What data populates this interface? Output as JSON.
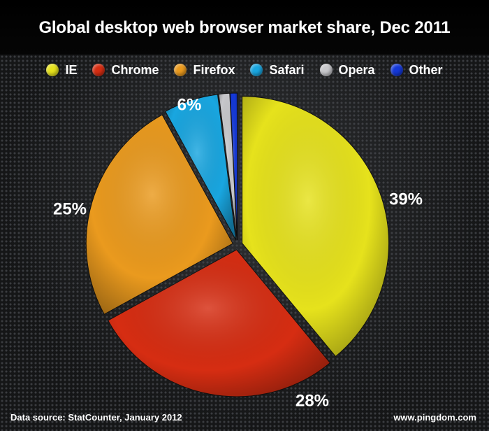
{
  "chart_data": {
    "type": "pie",
    "title": "Global desktop web browser market share, Dec 2011",
    "slices": [
      {
        "name": "IE",
        "value": 39,
        "label": "39%",
        "color": "#e6e21c"
      },
      {
        "name": "Chrome",
        "value": 28,
        "label": "28%",
        "color": "#d62d12"
      },
      {
        "name": "Firefox",
        "value": 25,
        "label": "25%",
        "color": "#ea9a1e"
      },
      {
        "name": "Safari",
        "value": 6,
        "label": "6%",
        "color": "#19a6e0"
      },
      {
        "name": "Opera",
        "value": 1.2,
        "label": "",
        "color": "#c8c8cc"
      },
      {
        "name": "Other",
        "value": 0.8,
        "label": "",
        "color": "#1438d8"
      }
    ],
    "legend": "top"
  },
  "footer": {
    "source": "Data source: StatCounter, January 2012",
    "credit": "www.pingdom.com"
  }
}
